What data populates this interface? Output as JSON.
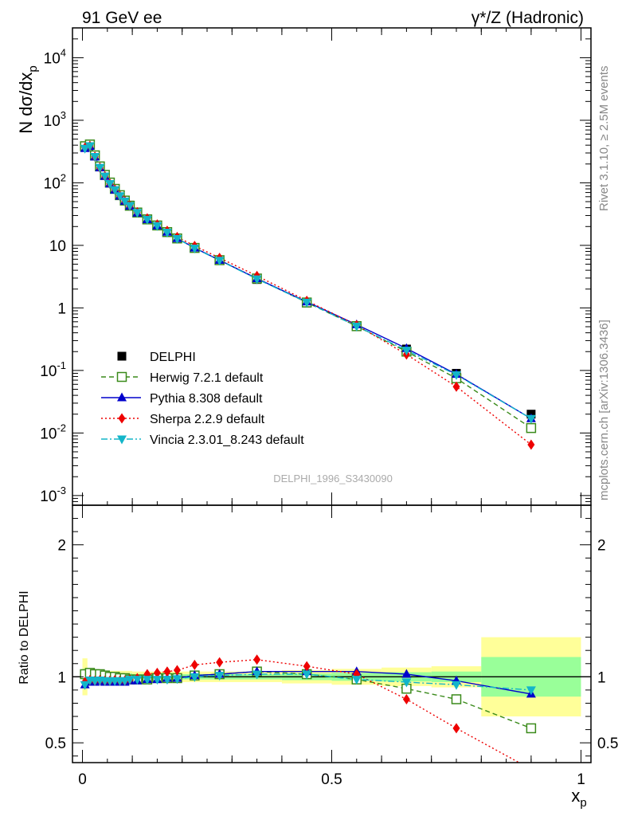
{
  "header": {
    "left_label": "91 GeV ee",
    "right_label_main": "γ*/Z (Hadronic)"
  },
  "side_labels": {
    "top": "Rivet 3.1.10, ≥ 2.5M events",
    "bottom": "mcplots.cern.ch [arXiv:1306.3436]"
  },
  "watermark": "DELPHI_1996_S3430090",
  "colors": {
    "data": "#000000",
    "herwig": "#3a8a1a",
    "pythia": "#0000cc",
    "sherpa": "#ee0000",
    "vincia": "#13b5c9",
    "band_outer": "#ffff99",
    "band_inner": "#99ff99"
  },
  "chart_data": [
    {
      "type": "line",
      "panel": "main",
      "ylabel_main": "N dσ/dx",
      "ylabel_sub": "p",
      "yscale": "log",
      "xlim": [
        -0.02,
        1.02
      ],
      "ylim": [
        0.0007,
        30000
      ],
      "ytick_labels": [
        "10^-3",
        "10^-2",
        "10^-1",
        "1",
        "10",
        "10^2",
        "10^3",
        "10^4"
      ],
      "legend_position": "bottom-left",
      "x": [
        0.005,
        0.015,
        0.025,
        0.035,
        0.045,
        0.055,
        0.065,
        0.075,
        0.085,
        0.095,
        0.11,
        0.13,
        0.15,
        0.17,
        0.19,
        0.225,
        0.275,
        0.35,
        0.45,
        0.55,
        0.65,
        0.75,
        0.9
      ],
      "series": [
        {
          "name": "DELPHI",
          "key": "data",
          "marker": "square",
          "values": [
            380,
            400,
            270,
            180,
            132,
            100,
            80,
            64,
            53,
            44,
            34,
            26.5,
            21,
            16.5,
            13,
            9,
            5.7,
            2.85,
            1.2,
            0.52,
            0.22,
            0.09,
            0.02
          ]
        },
        {
          "name": "Herwig 7.2.1 default",
          "key": "herwig",
          "marker": "open-square",
          "values": [
            385,
            410,
            275,
            183,
            134,
            101,
            80,
            63.5,
            52,
            43,
            33.5,
            26,
            20.8,
            16.3,
            12.9,
            9.1,
            5.8,
            2.95,
            1.22,
            0.51,
            0.2,
            0.075,
            0.012
          ]
        },
        {
          "name": "Pythia 8.308 default",
          "key": "pythia",
          "marker": "triangle-up",
          "values": [
            355,
            385,
            260,
            174,
            127,
            96,
            77,
            61.5,
            51,
            42.5,
            33,
            25.9,
            20.6,
            16.3,
            12.9,
            9.1,
            5.8,
            2.95,
            1.25,
            0.54,
            0.225,
            0.087,
            0.017
          ]
        },
        {
          "name": "Sherpa 2.2.9 default",
          "key": "sherpa",
          "marker": "diamond",
          "values": [
            365,
            390,
            262,
            175,
            128,
            97,
            78,
            62,
            51,
            43,
            34,
            27,
            21.6,
            17.1,
            13.6,
            9.8,
            6.3,
            3.25,
            1.3,
            0.53,
            0.18,
            0.055,
            0.0065
          ]
        },
        {
          "name": "Vincia 2.3.01_8.243 default",
          "key": "vincia",
          "marker": "triangle-down",
          "values": [
            355,
            390,
            263,
            176,
            128,
            97,
            77.5,
            62,
            51,
            43,
            33.5,
            26,
            20.6,
            16.2,
            12.8,
            9,
            5.75,
            2.9,
            1.23,
            0.51,
            0.21,
            0.085,
            0.017
          ]
        }
      ]
    },
    {
      "type": "line",
      "panel": "ratio",
      "ylabel": "Ratio to DELPHI",
      "xlabel_main": "x",
      "xlabel_sub": "p",
      "xlim": [
        -0.02,
        1.02
      ],
      "ylim": [
        0.35,
        2.3
      ],
      "yticks": [
        0.5,
        1,
        2
      ],
      "ytick_labels": [
        "0.5",
        "1",
        "2"
      ],
      "xticks": [
        0,
        0.5,
        1
      ],
      "xtick_labels": [
        "0",
        "0.5",
        "1"
      ],
      "x": [
        0.005,
        0.015,
        0.025,
        0.035,
        0.045,
        0.055,
        0.065,
        0.075,
        0.085,
        0.095,
        0.11,
        0.13,
        0.15,
        0.17,
        0.19,
        0.225,
        0.275,
        0.35,
        0.45,
        0.55,
        0.65,
        0.75,
        0.9
      ],
      "uncertainty_bands": [
        {
          "x0": 0.0,
          "x1": 0.01,
          "inner": 0.06,
          "outer": 0.14
        },
        {
          "x0": 0.01,
          "x1": 0.1,
          "inner": 0.025,
          "outer": 0.045
        },
        {
          "x0": 0.1,
          "x1": 0.4,
          "inner": 0.02,
          "outer": 0.04
        },
        {
          "x0": 0.4,
          "x1": 0.5,
          "inner": 0.025,
          "outer": 0.05
        },
        {
          "x0": 0.5,
          "x1": 0.6,
          "inner": 0.03,
          "outer": 0.06
        },
        {
          "x0": 0.6,
          "x1": 0.7,
          "inner": 0.035,
          "outer": 0.07
        },
        {
          "x0": 0.7,
          "x1": 0.8,
          "inner": 0.04,
          "outer": 0.08
        },
        {
          "x0": 0.8,
          "x1": 1.0,
          "inner": 0.15,
          "outer": 0.3
        }
      ],
      "series": [
        {
          "name": "Herwig 7.2.1 default",
          "key": "herwig",
          "marker": "open-square",
          "values": [
            1.02,
            1.03,
            1.02,
            1.02,
            1.01,
            1.0,
            1.0,
            0.99,
            0.99,
            0.98,
            0.98,
            0.98,
            0.99,
            0.99,
            0.99,
            1.01,
            1.02,
            1.04,
            1.02,
            0.98,
            0.91,
            0.83,
            0.61
          ]
        },
        {
          "name": "Pythia 8.308 default",
          "key": "pythia",
          "marker": "triangle-up",
          "values": [
            0.94,
            0.96,
            0.96,
            0.97,
            0.96,
            0.96,
            0.96,
            0.96,
            0.96,
            0.97,
            0.97,
            0.98,
            0.98,
            0.99,
            0.99,
            1.01,
            1.02,
            1.04,
            1.04,
            1.04,
            1.02,
            0.97,
            0.87
          ]
        },
        {
          "name": "Sherpa 2.2.9 default",
          "key": "sherpa",
          "marker": "diamond",
          "values": [
            0.96,
            0.975,
            0.97,
            0.975,
            0.97,
            0.97,
            0.975,
            0.97,
            0.97,
            0.98,
            0.99,
            1.02,
            1.03,
            1.04,
            1.05,
            1.09,
            1.11,
            1.13,
            1.08,
            1.02,
            0.83,
            0.61,
            0.3
          ]
        },
        {
          "name": "Vincia 2.3.01_8.243 default",
          "key": "vincia",
          "marker": "triangle-down",
          "values": [
            0.94,
            0.975,
            0.97,
            0.975,
            0.97,
            0.97,
            0.97,
            0.97,
            0.97,
            0.98,
            0.98,
            0.98,
            0.98,
            0.98,
            0.985,
            1.0,
            1.01,
            1.02,
            1.02,
            0.98,
            0.96,
            0.94,
            0.9
          ]
        }
      ]
    }
  ]
}
